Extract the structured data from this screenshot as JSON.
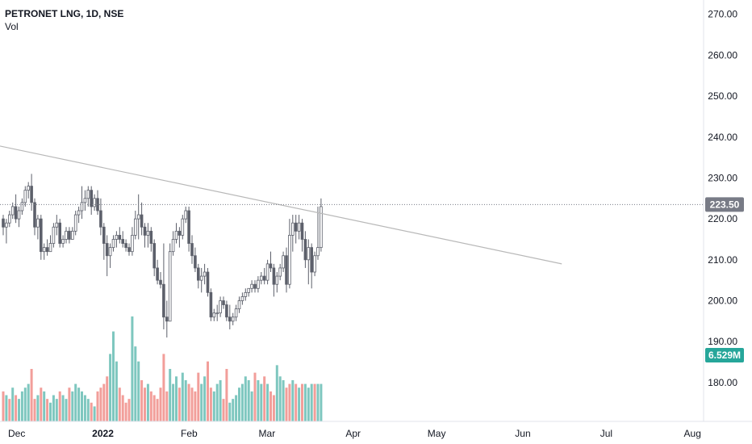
{
  "header": {
    "symbol": "PETRONET LNG, 1D, NSE",
    "volume_label": "Vol"
  },
  "colors": {
    "up": "#7ec7bf",
    "down": "#f29e9a",
    "candle": "#5d606b",
    "trendline": "#b8b8b8",
    "price_tag": "#787b86",
    "volume_tag": "#26a69a"
  },
  "chart_data": {
    "type": "candlestick",
    "x_axis": {
      "ticks": [
        "Dec",
        "2022",
        "Feb",
        "Mar",
        "Apr",
        "May",
        "Jun",
        "Jul",
        "Aug"
      ],
      "range": [
        "2021-11-25",
        "2022-08-05"
      ]
    },
    "y_axis": {
      "ticks": [
        "270.00",
        "260.00",
        "250.00",
        "240.00",
        "230.00",
        "220.00",
        "210.00",
        "200.00",
        "190.00",
        "180.00"
      ],
      "range": [
        170.5,
        273.5
      ],
      "side": "right"
    },
    "last_price_label": "223.50",
    "last_volume_label": "6.529M",
    "trendline": {
      "from": [
        "2021-11-22",
        237.8
      ],
      "to": [
        "2022-06-15",
        209.0
      ]
    },
    "ohlc": [
      [
        220,
        221,
        216,
        218
      ],
      [
        218,
        220,
        214,
        219
      ],
      [
        219,
        222,
        218,
        221
      ],
      [
        221,
        224,
        220,
        223
      ],
      [
        223,
        226,
        219,
        220
      ],
      [
        220,
        223,
        218,
        222
      ],
      [
        222,
        225,
        221,
        224
      ],
      [
        224,
        228,
        223,
        227
      ],
      [
        227,
        229,
        225,
        228
      ],
      [
        228,
        231,
        222,
        224
      ],
      [
        224,
        225,
        216,
        218
      ],
      [
        218,
        221,
        215,
        220
      ],
      [
        220,
        221,
        210,
        212
      ],
      [
        212,
        214,
        210,
        213
      ],
      [
        213,
        215,
        211,
        212
      ],
      [
        212,
        216,
        212,
        214
      ],
      [
        214,
        219,
        213,
        218
      ],
      [
        218,
        221,
        216,
        219
      ],
      [
        219,
        220,
        213,
        214
      ],
      [
        214,
        216,
        213,
        215
      ],
      [
        215,
        218,
        214,
        217
      ],
      [
        217,
        218,
        214,
        215
      ],
      [
        215,
        218,
        215,
        217
      ],
      [
        217,
        222,
        216,
        221
      ],
      [
        221,
        223,
        219,
        222
      ],
      [
        222,
        228,
        220,
        224
      ],
      [
        224,
        227,
        222,
        225
      ],
      [
        225,
        228,
        223,
        227
      ],
      [
        227,
        228,
        221,
        223
      ],
      [
        223,
        226,
        222,
        225
      ],
      [
        225,
        227,
        221,
        222
      ],
      [
        222,
        225,
        216,
        218
      ],
      [
        218,
        219,
        210,
        214
      ],
      [
        214,
        216,
        206,
        211
      ],
      [
        211,
        214,
        208,
        213
      ],
      [
        213,
        216,
        212,
        215
      ],
      [
        215,
        217,
        213,
        216
      ],
      [
        216,
        218,
        214,
        215
      ],
      [
        215,
        217,
        213,
        214
      ],
      [
        214,
        215,
        212,
        213
      ],
      [
        213,
        214,
        211,
        212
      ],
      [
        212,
        218,
        211,
        216
      ],
      [
        216,
        222,
        215,
        220
      ],
      [
        220,
        226,
        215,
        221
      ],
      [
        221,
        224,
        216,
        218
      ],
      [
        218,
        219,
        213,
        216
      ],
      [
        216,
        219,
        213,
        217
      ],
      [
        217,
        218,
        212,
        214
      ],
      [
        214,
        215,
        206,
        208
      ],
      [
        208,
        210,
        204,
        205
      ],
      [
        205,
        207,
        203,
        204
      ],
      [
        204,
        214,
        193,
        196
      ],
      [
        196,
        200,
        191,
        195
      ],
      [
        195,
        214,
        195,
        212
      ],
      [
        212,
        217,
        211,
        215
      ],
      [
        215,
        219,
        214,
        217
      ],
      [
        217,
        218,
        213,
        216
      ],
      [
        216,
        221,
        215,
        220
      ],
      [
        220,
        223,
        219,
        222
      ],
      [
        222,
        223,
        212,
        214
      ],
      [
        214,
        216,
        209,
        211
      ],
      [
        211,
        213,
        207,
        208
      ],
      [
        208,
        209,
        203,
        205
      ],
      [
        205,
        208,
        202,
        206
      ],
      [
        206,
        209,
        204,
        207
      ],
      [
        207,
        208,
        201,
        202
      ],
      [
        202,
        203,
        195,
        196
      ],
      [
        196,
        198,
        195,
        197
      ],
      [
        197,
        199,
        195,
        197
      ],
      [
        197,
        201,
        196,
        200
      ],
      [
        200,
        201,
        198,
        199
      ],
      [
        199,
        200,
        195,
        196
      ],
      [
        196,
        199,
        193,
        195
      ],
      [
        195,
        197,
        194,
        196
      ],
      [
        196,
        199,
        195,
        198
      ],
      [
        198,
        201,
        197,
        200
      ],
      [
        200,
        202,
        199,
        201
      ],
      [
        201,
        203,
        200,
        202
      ],
      [
        202,
        203,
        201,
        203
      ],
      [
        203,
        205,
        202,
        204
      ],
      [
        204,
        205,
        202,
        203
      ],
      [
        203,
        206,
        202,
        205
      ],
      [
        205,
        207,
        204,
        206
      ],
      [
        206,
        208,
        204,
        205
      ],
      [
        205,
        210,
        204,
        209
      ],
      [
        209,
        212,
        207,
        208
      ],
      [
        208,
        209,
        201,
        204
      ],
      [
        204,
        207,
        202,
        206
      ],
      [
        206,
        209,
        205,
        208
      ],
      [
        208,
        212,
        207,
        211
      ],
      [
        211,
        213,
        202,
        204
      ],
      [
        204,
        220,
        203,
        216
      ],
      [
        216,
        221,
        212,
        219
      ],
      [
        219,
        221,
        214,
        217
      ],
      [
        217,
        221,
        215,
        219
      ],
      [
        219,
        220,
        212,
        215
      ],
      [
        215,
        217,
        208,
        210
      ],
      [
        210,
        215,
        204,
        213
      ],
      [
        213,
        214,
        203,
        207
      ],
      [
        207,
        212,
        206,
        211
      ],
      [
        211,
        223,
        210,
        213
      ],
      [
        213,
        225,
        212,
        223
      ]
    ],
    "volume_heights": [
      8,
      7,
      6,
      9,
      7,
      6,
      8,
      9,
      10,
      14,
      6,
      7,
      9,
      8,
      6,
      5,
      7,
      6,
      8,
      7,
      6,
      9,
      8,
      10,
      9,
      8,
      7,
      6,
      5,
      4,
      8,
      9,
      10,
      12,
      18,
      24,
      16,
      9,
      7,
      5,
      6,
      28,
      20,
      16,
      11,
      9,
      10,
      8,
      7,
      6,
      9,
      18,
      8,
      14,
      10,
      12,
      9,
      13,
      11,
      10,
      9,
      8,
      13,
      10,
      12,
      16,
      9,
      8,
      10,
      11,
      6,
      14,
      5,
      6,
      7,
      9,
      10,
      12,
      11,
      8,
      13,
      11,
      10,
      12,
      10,
      8,
      7,
      15,
      12,
      11,
      9,
      10,
      11,
      10,
      9,
      10,
      10,
      9,
      10,
      10,
      10,
      10
    ],
    "volume_up": [
      0,
      1,
      0,
      1,
      0,
      1,
      1,
      1,
      1,
      0,
      0,
      1,
      0,
      1,
      0,
      1,
      1,
      1,
      0,
      1,
      1,
      0,
      1,
      1,
      1,
      1,
      1,
      1,
      0,
      1,
      0,
      0,
      0,
      0,
      1,
      1,
      1,
      0,
      0,
      0,
      0,
      1,
      1,
      1,
      0,
      0,
      1,
      0,
      0,
      0,
      0,
      0,
      0,
      1,
      1,
      1,
      0,
      1,
      1,
      0,
      0,
      0,
      0,
      1,
      1,
      0,
      0,
      1,
      1,
      1,
      0,
      0,
      1,
      1,
      1,
      1,
      1,
      1,
      1,
      1,
      0,
      1,
      1,
      0,
      1,
      0,
      0,
      1,
      1,
      1,
      0,
      0,
      1,
      0,
      1,
      0,
      1,
      1,
      1,
      0,
      1,
      1
    ]
  }
}
